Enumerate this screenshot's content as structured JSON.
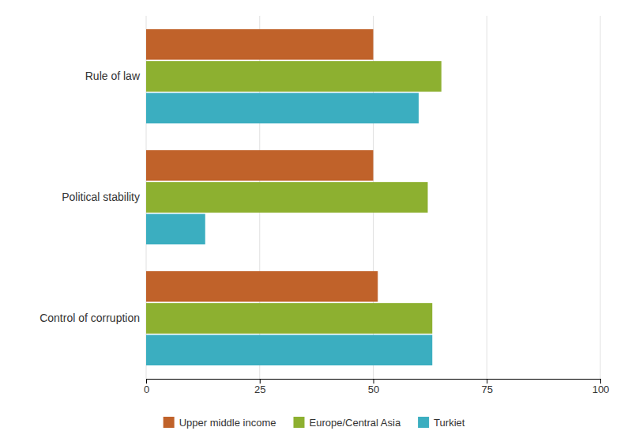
{
  "chart_data": {
    "type": "bar",
    "orientation": "horizontal",
    "categories": [
      "Control of corruption",
      "Political stability",
      "Rule of law"
    ],
    "series": [
      {
        "name": "Upper middle income",
        "color": "#C0622A",
        "values": [
          51,
          50,
          50
        ]
      },
      {
        "name": "Europe/Central Asia",
        "color": "#8DB030",
        "values": [
          63,
          62,
          65
        ]
      },
      {
        "name": "Turkiet",
        "color": "#3BAEC0",
        "values": [
          63,
          13,
          60
        ]
      }
    ],
    "xlim": [
      0,
      100
    ],
    "xticks": [
      0,
      25,
      50,
      75,
      100
    ],
    "grid": true,
    "legend": "bottom"
  }
}
